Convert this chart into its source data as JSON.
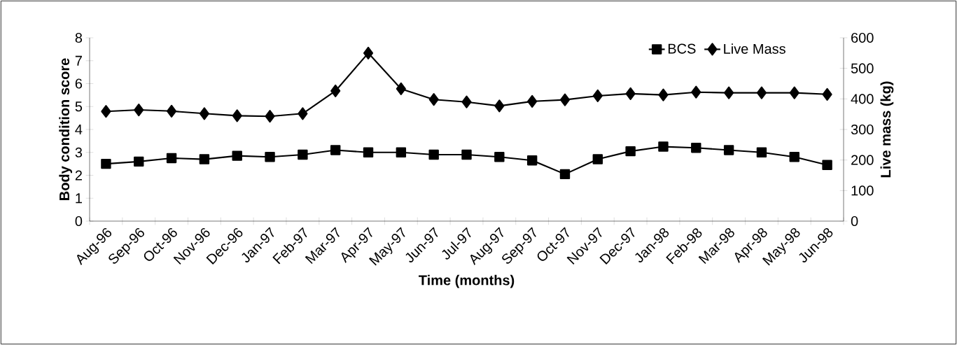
{
  "chart_data": {
    "type": "line",
    "categories": [
      "Aug-96",
      "Sep-96",
      "Oct-96",
      "Nov-96",
      "Dec-96",
      "Jan-97",
      "Feb-97",
      "Mar-97",
      "Apr-97",
      "May-97",
      "Jun-97",
      "Jul-97",
      "Aug-97",
      "Sep-97",
      "Oct-97",
      "Nov-97",
      "Dec-97",
      "Jan-98",
      "Feb-98",
      "Mar-98",
      "Apr-98",
      "May-98",
      "Jun-98"
    ],
    "series": [
      {
        "name": "BCS",
        "color": "#000000",
        "marker": "square",
        "values": [
          2.5,
          2.6,
          2.75,
          2.7,
          2.85,
          2.8,
          2.9,
          3.1,
          3.0,
          3.0,
          2.9,
          2.9,
          2.8,
          2.65,
          2.05,
          2.7,
          3.05,
          3.25,
          3.2,
          3.1,
          3.0,
          2.8,
          2.45
        ]
      },
      {
        "name": "Live Mass",
        "color": "#000000",
        "marker": "diamond",
        "axis": "y2",
        "values": [
          359,
          364,
          360,
          352,
          345,
          343,
          352,
          426,
          550,
          433,
          398,
          390,
          377,
          392,
          397,
          410,
          417,
          413,
          422,
          420,
          420,
          420,
          415
        ]
      }
    ],
    "xlabel": "Time (months)",
    "ylabel": "Body condition score",
    "y2label": "Live mass (kg)",
    "ylim": [
      0,
      8
    ],
    "yticks": [
      0,
      1,
      2,
      3,
      4,
      5,
      6,
      7,
      8
    ],
    "y2lim": [
      0,
      600
    ],
    "y2ticks": [
      0,
      100,
      200,
      300,
      400,
      500,
      600
    ],
    "legend": "top right",
    "grid": false,
    "line_style": "solid"
  }
}
